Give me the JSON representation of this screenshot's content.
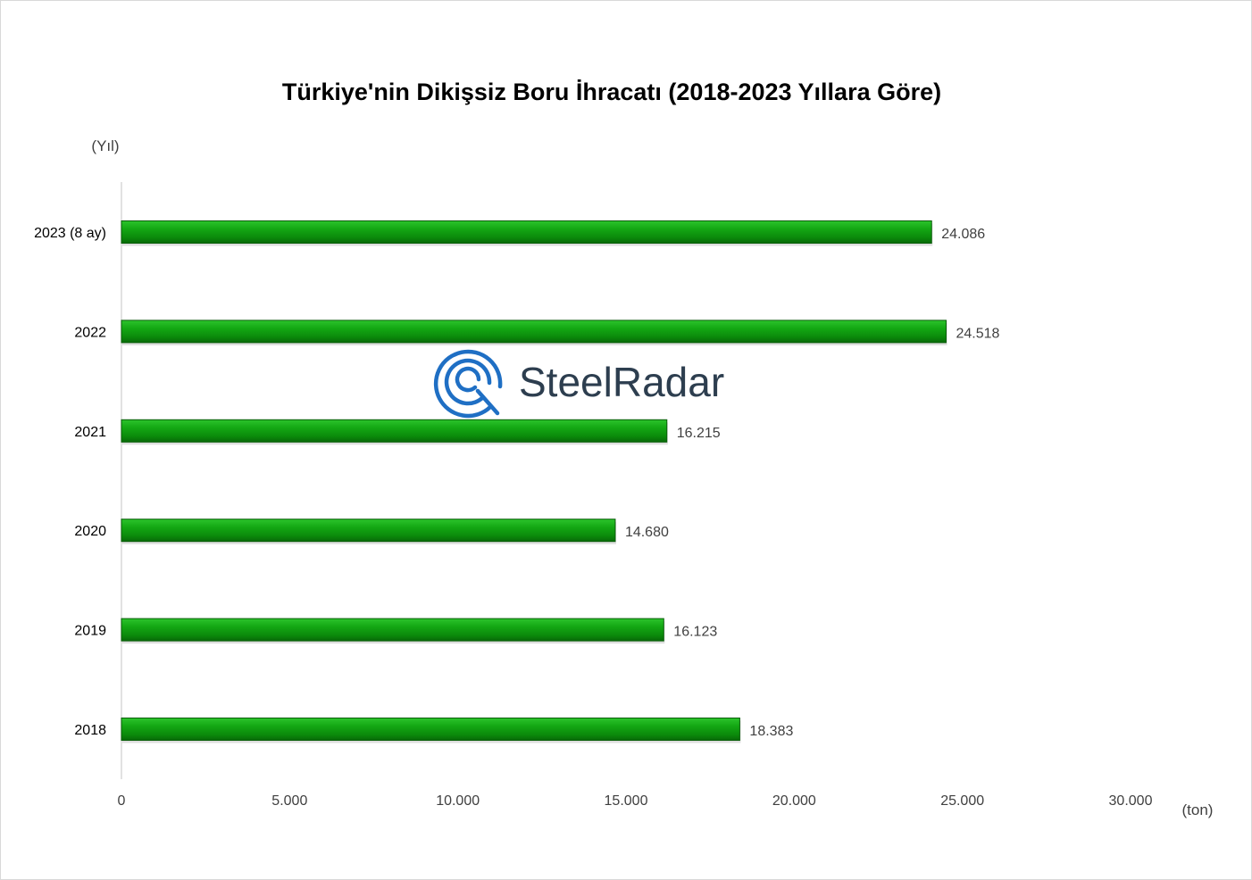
{
  "chart_data": {
    "type": "bar",
    "orientation": "horizontal",
    "title": "Türkiye'nin Dikişsiz Boru İhracatı (2018-2023 Yıllara Göre)",
    "ylabel": "(Yıl)",
    "xlabel": "(ton)",
    "categories": [
      "2023 (8 ay)",
      "2022",
      "2021",
      "2020",
      "2019",
      "2018"
    ],
    "values": [
      24086,
      24518,
      16215,
      14680,
      16123,
      18383
    ],
    "value_labels": [
      "24.086",
      "24.518",
      "16.215",
      "14.680",
      "16.123",
      "18.383"
    ],
    "xlim": [
      0,
      30000
    ],
    "xticks": [
      0,
      5000,
      10000,
      15000,
      20000,
      25000,
      30000
    ],
    "xtick_labels": [
      "0",
      "5.000",
      "10.000",
      "15.000",
      "20.000",
      "25.000",
      "30.000"
    ],
    "grid": false,
    "legend": "none",
    "bar_color": "#1a9a1a"
  },
  "watermark": {
    "text": "SteelRadar"
  },
  "colors": {
    "bar_light": "#33cc33",
    "bar_main": "#12a012",
    "bar_dark": "#0a6e0a",
    "logo_blue": "#1f6fc4",
    "logo_text": "#2d3e4f"
  }
}
